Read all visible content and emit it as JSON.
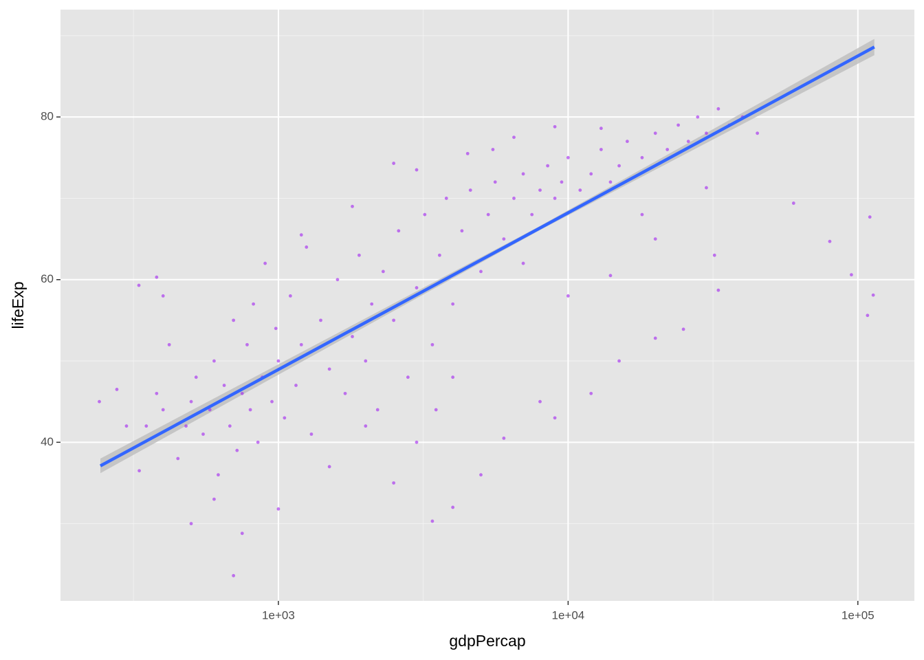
{
  "chart_data": {
    "type": "scatter",
    "x_label": "gdpPercap",
    "y_label": "lifeExp",
    "xscale": "log",
    "xlim": [
      177,
      156700
    ],
    "ylim": [
      20.5,
      93.2
    ],
    "xticks": [
      {
        "value": 1000,
        "label": "1e+03"
      },
      {
        "value": 10000,
        "label": "1e+04"
      },
      {
        "value": 100000,
        "label": "1e+05"
      }
    ],
    "yticks": [
      40,
      60,
      80
    ],
    "minor_xticks": [
      316,
      3162,
      31623
    ],
    "minor_yticks": [
      30,
      50,
      70,
      90
    ],
    "grid": true,
    "color": "#a020f0",
    "x": [
      241,
      277,
      299,
      331,
      350,
      380,
      400,
      420,
      450,
      480,
      500,
      520,
      550,
      580,
      600,
      620,
      650,
      680,
      700,
      720,
      750,
      780,
      800,
      820,
      850,
      880,
      900,
      950,
      980,
      1000,
      1050,
      1100,
      1150,
      1200,
      1250,
      1300,
      1400,
      1500,
      1600,
      1700,
      1800,
      1900,
      2000,
      2100,
      2200,
      2300,
      2500,
      2600,
      2800,
      3000,
      3200,
      3400,
      3600,
      3800,
      4000,
      4300,
      4600,
      5000,
      5300,
      5600,
      6000,
      6500,
      7000,
      7500,
      8000,
      8500,
      9000,
      9500,
      10000,
      11000,
      12000,
      13000,
      14000,
      15000,
      16000,
      18000,
      20000,
      22000,
      24000,
      26000,
      28000,
      30000,
      33000,
      36000,
      40000,
      45000,
      60000,
      80000,
      95000,
      108000,
      110000,
      113000,
      700,
      750,
      3400,
      4000,
      9000,
      15000,
      20000,
      25000,
      30000,
      32000,
      33000,
      12000,
      6000,
      5000,
      8000,
      500,
      600,
      400,
      380,
      330,
      1000,
      1500,
      2500,
      3000,
      3500,
      2000,
      1200,
      1800,
      2500,
      3000,
      4500,
      5500,
      6500,
      9000,
      13000,
      18000,
      10000,
      7000,
      4000,
      14000,
      20000
    ],
    "y": [
      45,
      46.5,
      42,
      36.5,
      42,
      46,
      44,
      52,
      38,
      42,
      45,
      48,
      41,
      44,
      50,
      36,
      47,
      42,
      55,
      39,
      46,
      52,
      44,
      57,
      40,
      48,
      62,
      45,
      54,
      50,
      43,
      58,
      47,
      52,
      64,
      41,
      55,
      49,
      60,
      46,
      53,
      63,
      50,
      57,
      44,
      61,
      55,
      66,
      48,
      59,
      68,
      52,
      63,
      70,
      57,
      66,
      71,
      61,
      68,
      72,
      65,
      70,
      73,
      68,
      71,
      74,
      70,
      72,
      75,
      71,
      73,
      76,
      72,
      74,
      77,
      75,
      78,
      76,
      79,
      77,
      80,
      78,
      81,
      79,
      80,
      78,
      69.4,
      64.7,
      60.6,
      55.6,
      67.7,
      58.1,
      23.6,
      28.8,
      30.3,
      32,
      43,
      50,
      52.8,
      53.9,
      71.3,
      63,
      58.7,
      46,
      40.5,
      36,
      45,
      30,
      33,
      58,
      60.3,
      59.3,
      31.8,
      37,
      35,
      40,
      44,
      42,
      65.5,
      69,
      74.3,
      73.5,
      75.5,
      76,
      77.5,
      78.8,
      78.6,
      68,
      58,
      62,
      48,
      60.5,
      65
    ],
    "trend": {
      "color": "#3366ff",
      "band_color": "#bdbdbd",
      "x": [
        243,
        8000,
        114000
      ],
      "y": [
        37.1,
        66.35,
        88.6
      ],
      "lower": [
        36.2,
        66.1,
        87.6
      ],
      "upper": [
        38.0,
        66.6,
        89.6
      ]
    }
  }
}
